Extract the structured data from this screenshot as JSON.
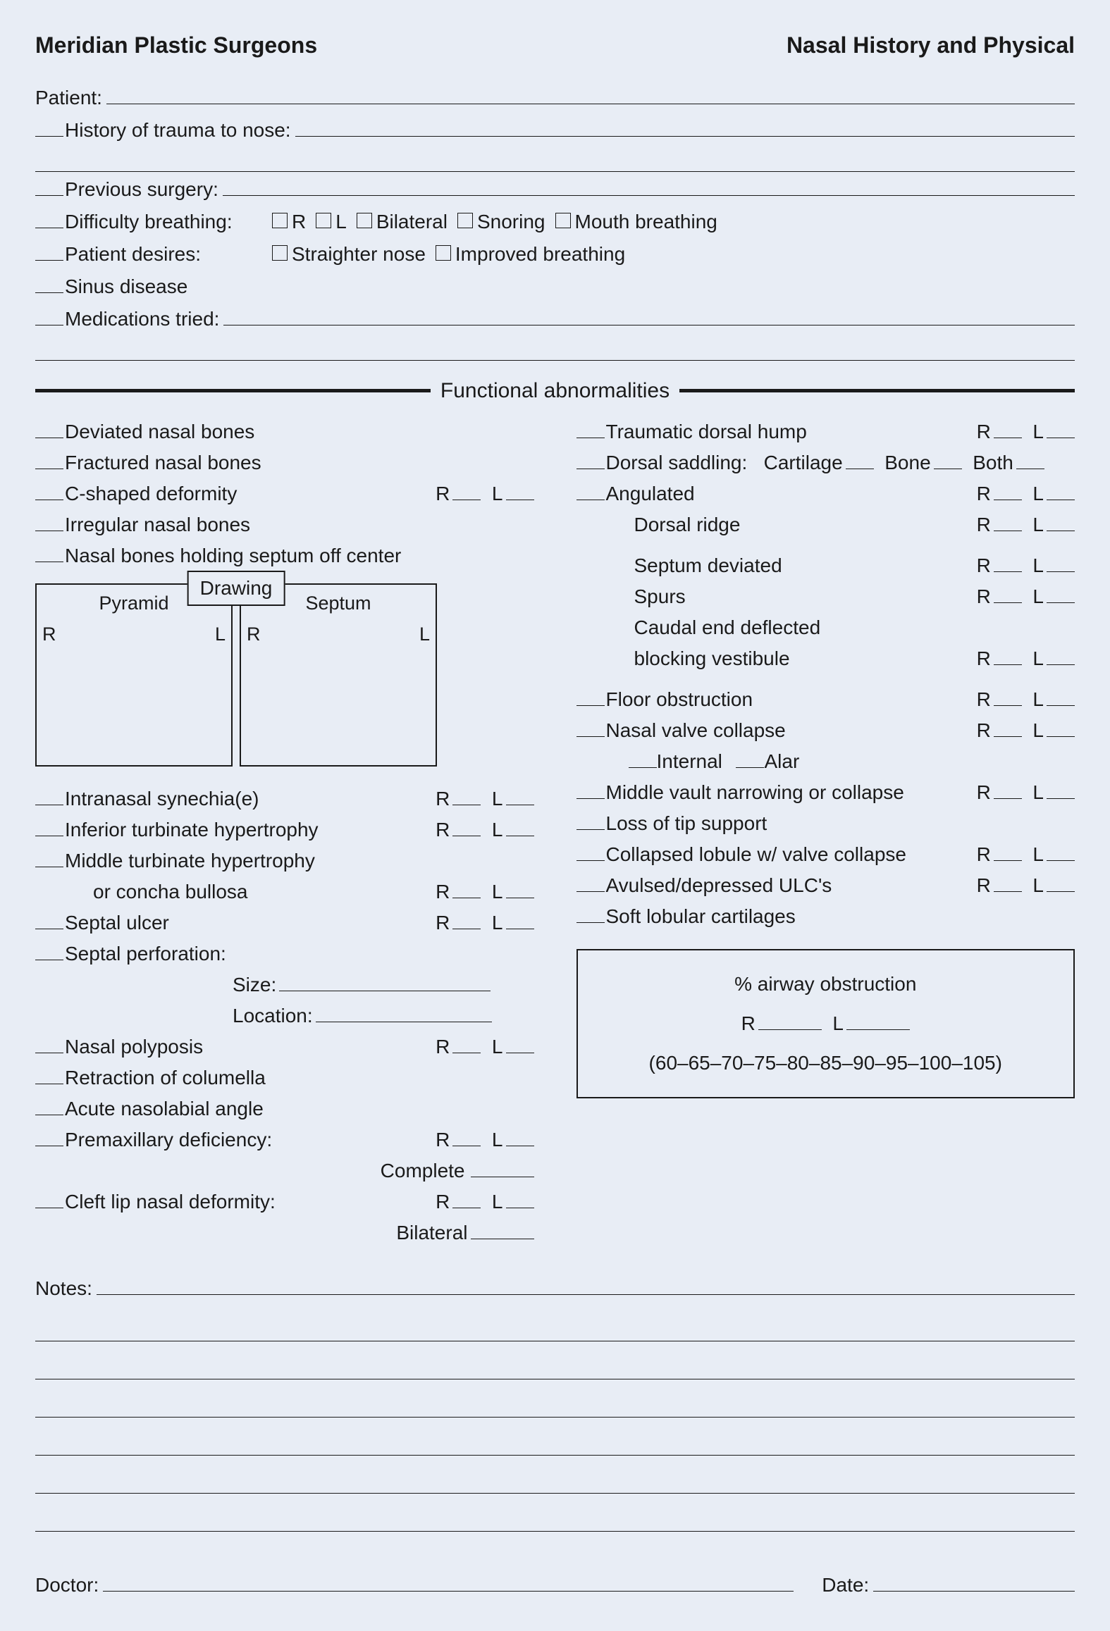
{
  "header": {
    "left": "Meridian Plastic Surgeons",
    "right": "Nasal History and Physical"
  },
  "top": {
    "patient": "Patient:",
    "history_trauma": "History of trauma to nose:",
    "previous_surgery": "Previous surgery:",
    "difficulty_breathing": "Difficulty breathing:",
    "db_opts": {
      "r": "R",
      "l": "L",
      "bilateral": "Bilateral",
      "snoring": "Snoring",
      "mouth": "Mouth breathing"
    },
    "patient_desires": "Patient desires:",
    "pd_opts": {
      "straighter": "Straighter nose",
      "improved": "Improved breathing"
    },
    "sinus": "Sinus disease",
    "medications": "Medications tried:"
  },
  "section_title": "Functional abnormalities",
  "rl": {
    "r": "R",
    "l": "L"
  },
  "left_col": {
    "items1": [
      "Deviated nasal bones",
      "Fractured nasal bones",
      "C-shaped deformity",
      "Irregular nasal bones",
      "Nasal bones holding septum off center"
    ],
    "items1_rl_index": 2,
    "drawing": {
      "tag": "Drawing",
      "pyramid": "Pyramid",
      "septum": "Septum",
      "r": "R",
      "l": "L"
    },
    "items2": [
      {
        "label": "Intranasal synechia(e)",
        "rl": true,
        "pre": true
      },
      {
        "label": "Inferior turbinate hypertrophy",
        "rl": true,
        "pre": true
      },
      {
        "label": "Middle turbinate hypertrophy",
        "rl": false,
        "pre": true
      },
      {
        "label": "or concha bullosa",
        "rl": true,
        "pre": false,
        "indent": true
      },
      {
        "label": "Septal ulcer",
        "rl": true,
        "pre": true
      },
      {
        "label": "Septal perforation:",
        "rl": false,
        "pre": true
      }
    ],
    "size": "Size:",
    "location": "Location:",
    "items3": [
      {
        "label": "Nasal polyposis",
        "rl": true,
        "pre": true
      },
      {
        "label": "Retraction of columella",
        "rl": false,
        "pre": true
      },
      {
        "label": "Acute nasolabial angle",
        "rl": false,
        "pre": true
      },
      {
        "label": "Premaxillary deficiency:",
        "rl": true,
        "pre": true
      }
    ],
    "complete": "Complete",
    "cleft": "Cleft lip nasal deformity:",
    "bilateral_sub": "Bilateral"
  },
  "right_col": {
    "items1": [
      {
        "pre": true,
        "label": "Traumatic dorsal hump",
        "rl": true
      },
      {
        "pre": true,
        "label_special": "dorsal_saddling"
      },
      {
        "pre": true,
        "label": "Angulated",
        "rl": true
      },
      {
        "pre": false,
        "label": "Dorsal ridge",
        "rl": true,
        "indent": true
      }
    ],
    "dorsal_saddling": {
      "label": "Dorsal saddling:",
      "cartilage": "Cartilage",
      "bone": "Bone",
      "both": "Both"
    },
    "items2": [
      {
        "pre": false,
        "label": "Septum deviated",
        "rl": true,
        "indent": true
      },
      {
        "pre": false,
        "label": "Spurs",
        "rl": true,
        "indent": true
      },
      {
        "pre": false,
        "label": "Caudal end deflected",
        "rl": false,
        "indent": true
      },
      {
        "pre": false,
        "label": "blocking vestibule",
        "rl": true,
        "indent": true
      }
    ],
    "items3": [
      {
        "pre": true,
        "label": "Floor obstruction",
        "rl": true
      },
      {
        "pre": true,
        "label": "Nasal valve collapse",
        "rl": true
      }
    ],
    "valve_sub": {
      "internal": "Internal",
      "alar": "Alar"
    },
    "items4": [
      {
        "pre": true,
        "label": "Middle vault narrowing or collapse",
        "rl": true
      },
      {
        "pre": true,
        "label": "Loss of tip support",
        "rl": false
      },
      {
        "pre": true,
        "label": "Collapsed lobule w/ valve collapse",
        "rl": true
      },
      {
        "pre": true,
        "label": "Avulsed/depressed ULC's",
        "rl": true
      },
      {
        "pre": true,
        "label": "Soft lobular cartilages",
        "rl": false
      }
    ],
    "airway": {
      "title": "% airway obstruction",
      "r": "R",
      "l": "L",
      "scale": "(60–65–70–75–80–85–90–95–100–105)"
    }
  },
  "notes_label": "Notes:",
  "notes_line_count": 6,
  "footer": {
    "doctor": "Doctor:",
    "date": "Date:"
  },
  "colors": {
    "bg": "#e8edf5",
    "text": "#1a1a1a",
    "line": "#1a1a1a"
  }
}
